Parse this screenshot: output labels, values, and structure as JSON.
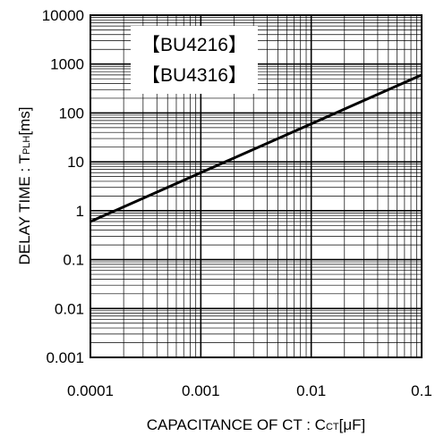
{
  "chart_data": {
    "type": "line",
    "x_scale": "log",
    "y_scale": "log",
    "xlim": [
      0.0001,
      0.1
    ],
    "ylim": [
      0.001,
      10000
    ],
    "x_ticks": [
      "0.0001",
      "0.001",
      "0.01",
      "0.1"
    ],
    "y_ticks": [
      "10000",
      "1000",
      "100",
      "10",
      "1",
      "0.1",
      "0.01",
      "0.001"
    ],
    "xlabel": {
      "main": "CAPACITANCE OF CT : C",
      "sub": "CT",
      "unit": "[μF]"
    },
    "ylabel": {
      "main": "DELAY TIME : T",
      "sub": "PLH",
      "unit": "[ms]"
    },
    "annotations": [
      "【BU4216】",
      "【BU4316】"
    ],
    "grid": true,
    "series": [
      {
        "x": [
          0.0001,
          0.001,
          0.01,
          0.1
        ],
        "y": [
          0.6,
          6,
          60,
          600
        ]
      }
    ],
    "line_color": "#000000"
  }
}
